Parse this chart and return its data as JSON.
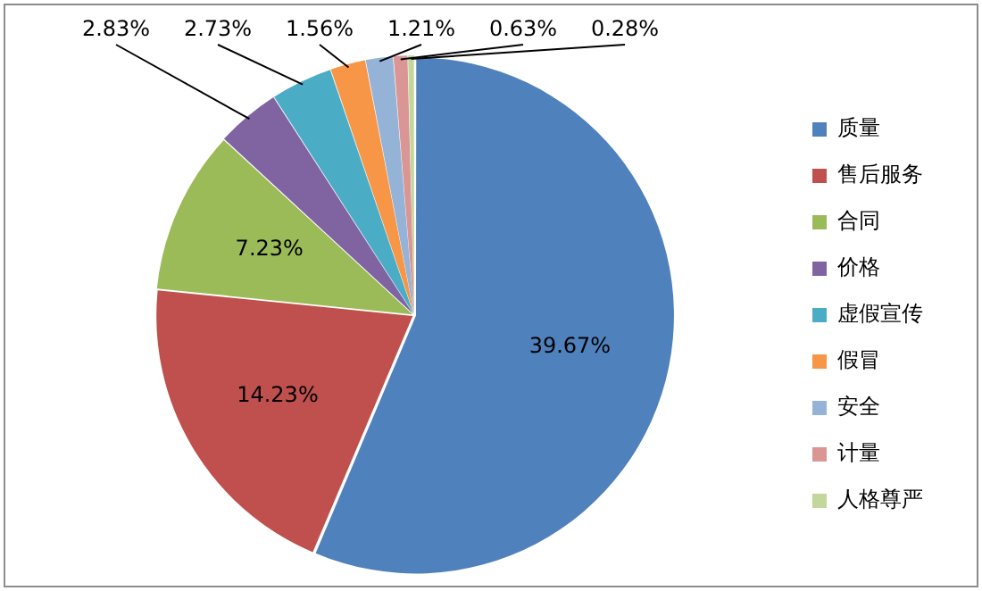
{
  "chart_data": {
    "type": "pie",
    "categories": [
      "质量",
      "售后服务",
      "合同",
      "价格",
      "虚假宣传",
      "假冒",
      "安全",
      "计量",
      "人格尊严"
    ],
    "values": [
      39.67,
      14.23,
      7.23,
      2.83,
      2.73,
      1.56,
      1.21,
      0.63,
      0.28
    ],
    "colors": [
      "#4f81bd",
      "#c0504d",
      "#9bbb59",
      "#8064a2",
      "#4bacc6",
      "#f79646",
      "#95b3d7",
      "#d99694",
      "#c3d69b"
    ],
    "value_labels": [
      "39.67%",
      "14.23%",
      "7.23%",
      "2.83%",
      "2.73%",
      "1.56%",
      "1.21%",
      "0.63%",
      "0.28%"
    ],
    "legend": "right"
  }
}
